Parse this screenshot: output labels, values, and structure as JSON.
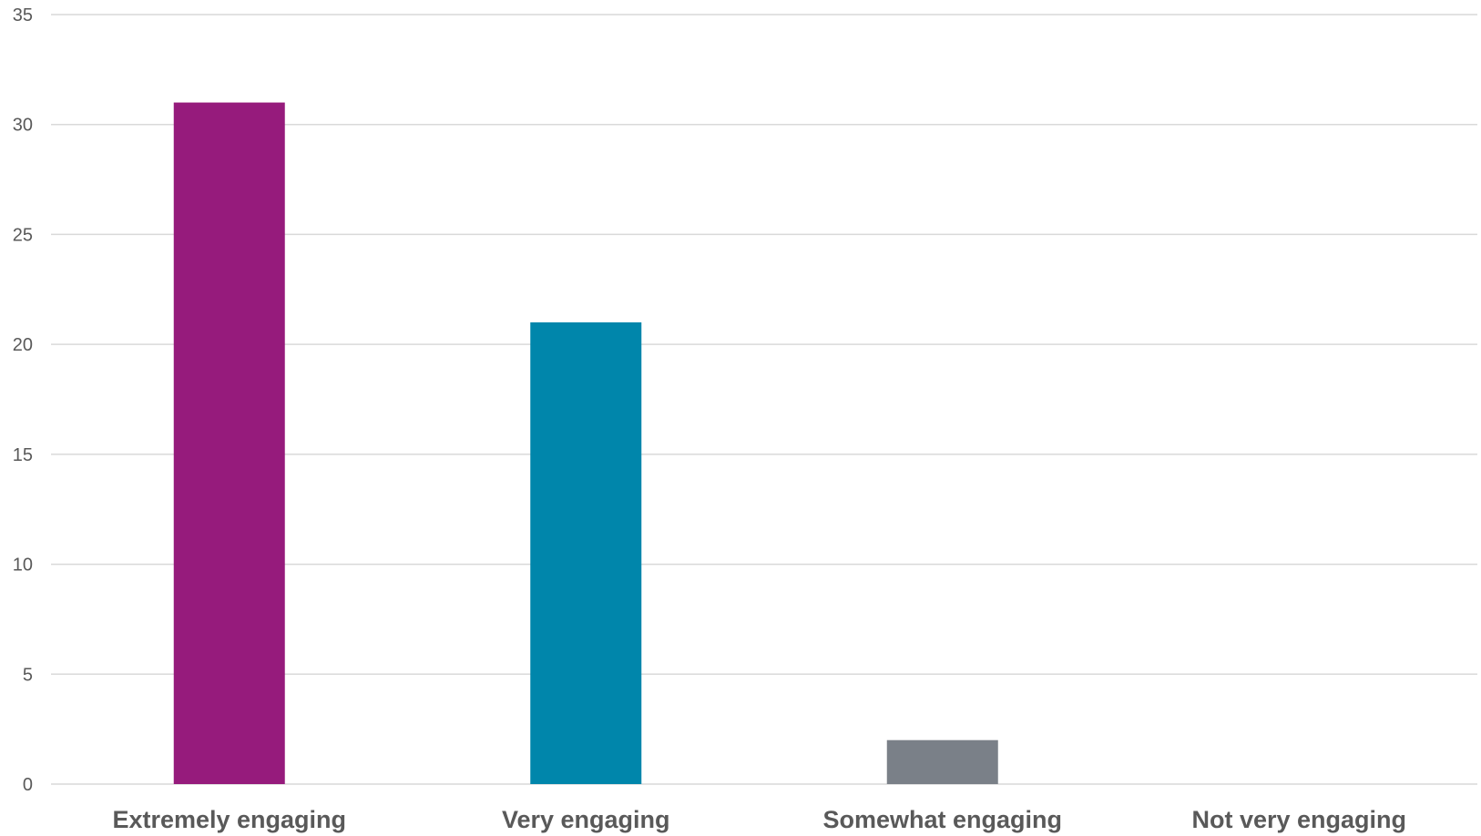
{
  "chart_data": {
    "type": "bar",
    "title": "",
    "xlabel": "",
    "ylabel": "",
    "categories": [
      "Extremely engaging",
      "Very engaging",
      "Somewhat engaging",
      "Not very engaging"
    ],
    "values": [
      31,
      21,
      2,
      0
    ],
    "colors": [
      "#961b7c",
      "#0086ab",
      "#7a8088",
      "#7a8088"
    ],
    "ylim": [
      0,
      35
    ],
    "yticks": [
      "0",
      "5",
      "10",
      "15",
      "20",
      "25",
      "30",
      "35"
    ],
    "grid": true,
    "legend": "none"
  }
}
